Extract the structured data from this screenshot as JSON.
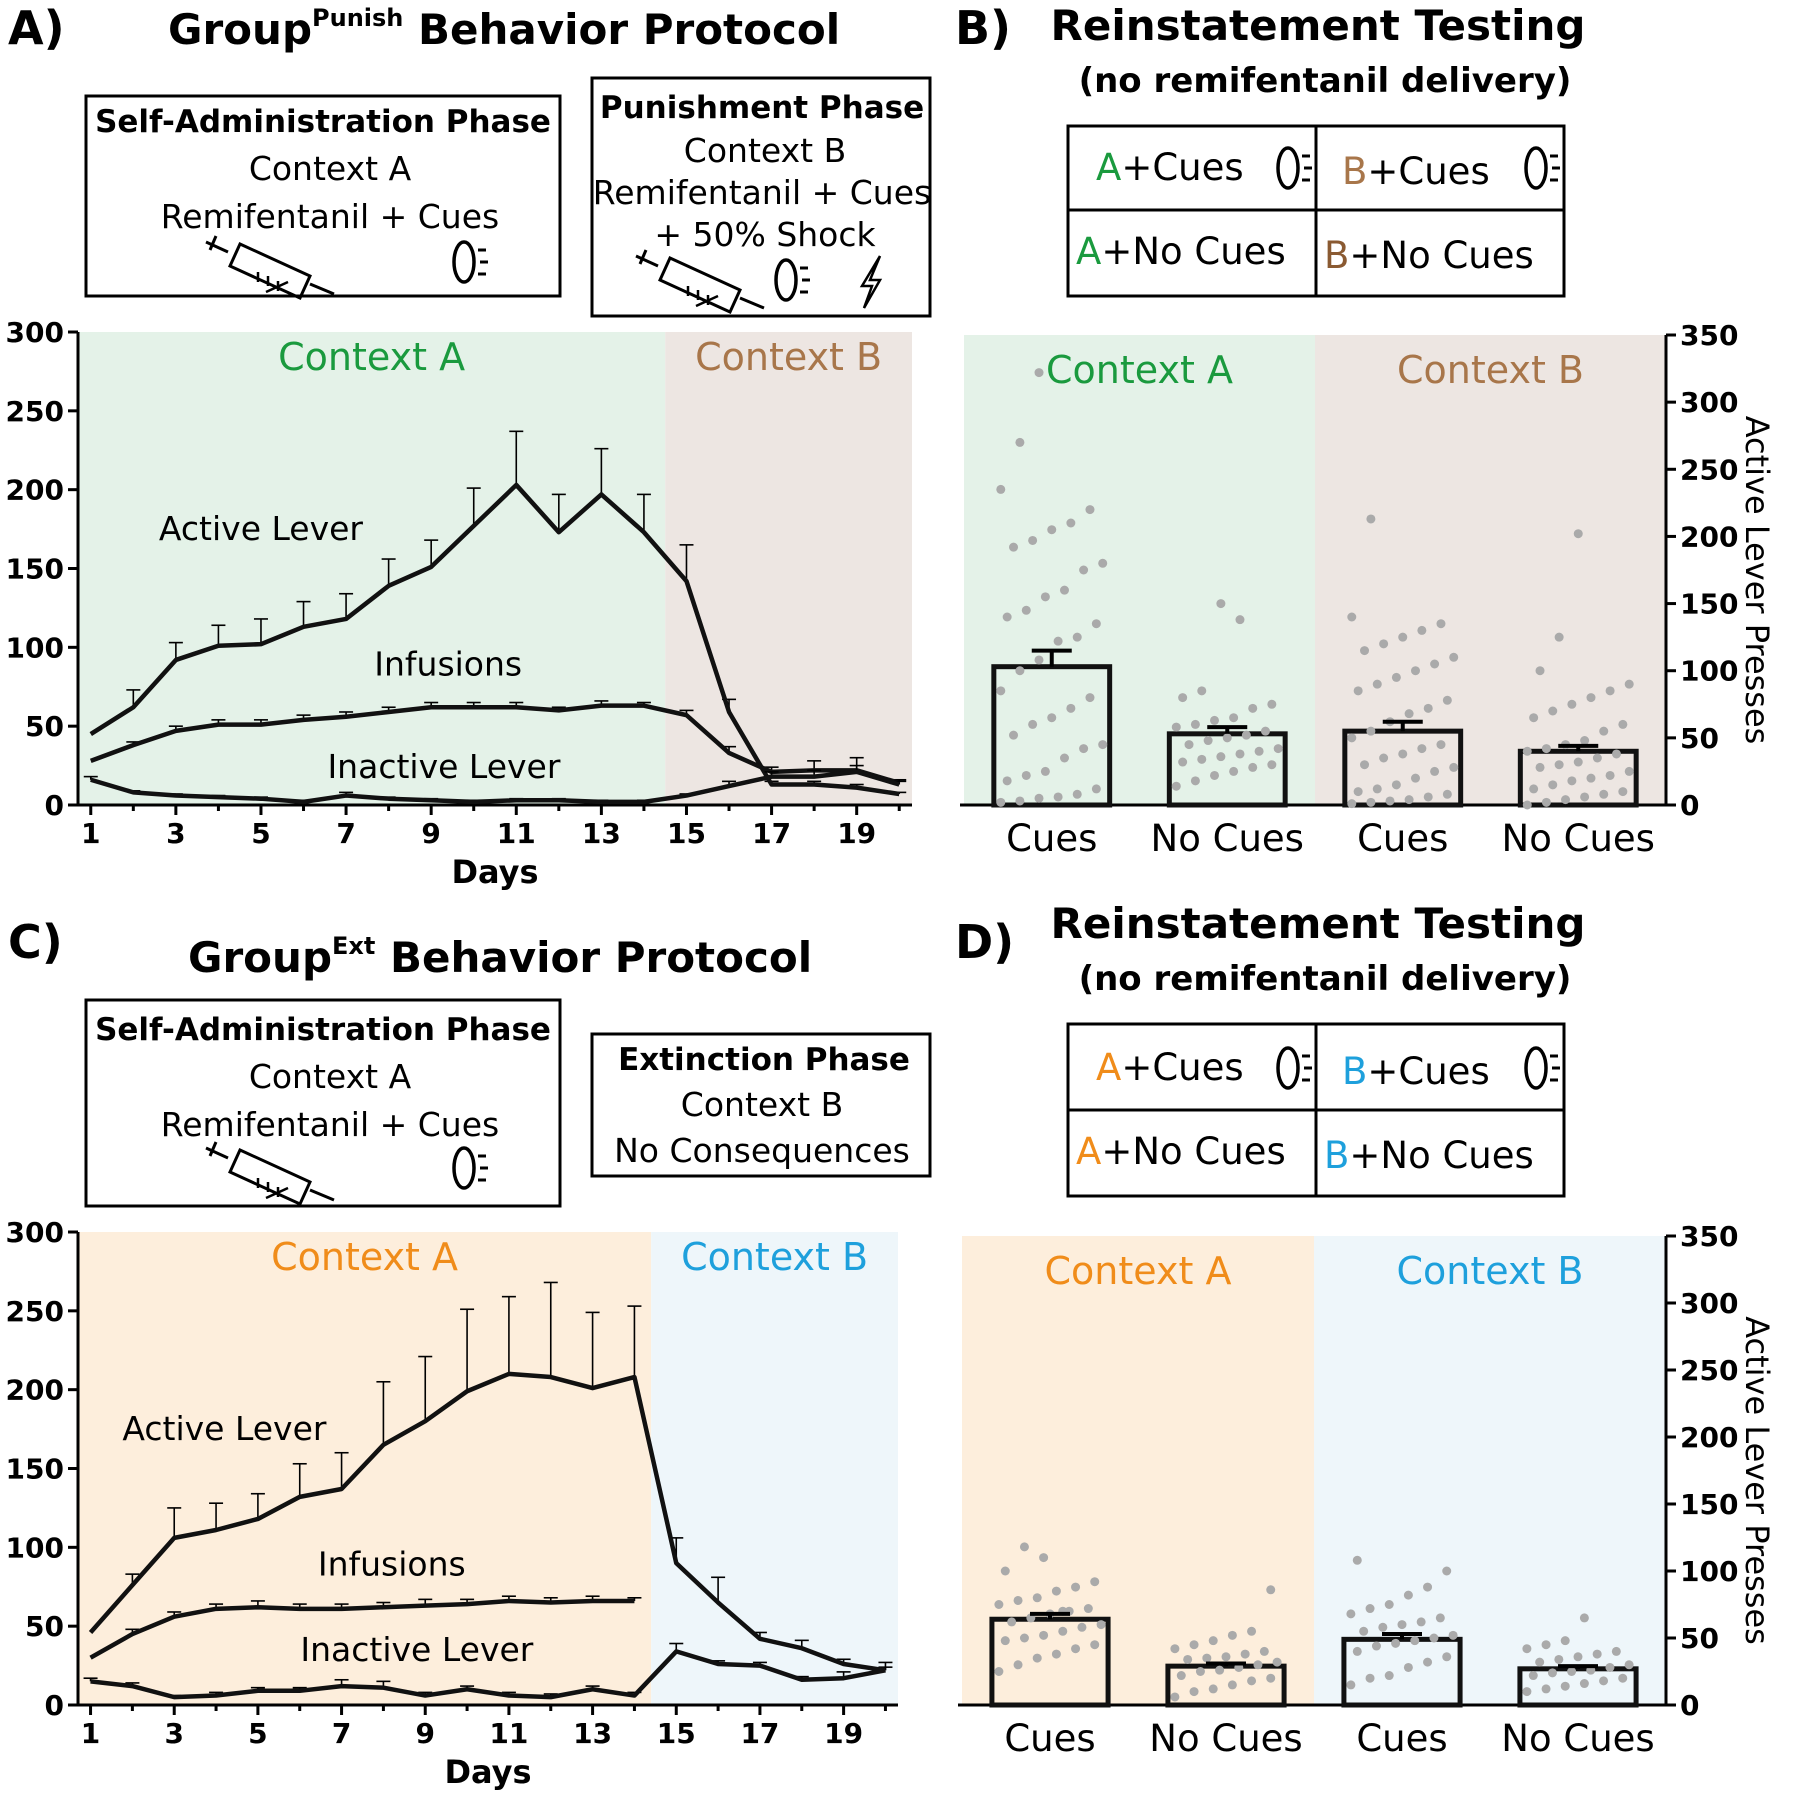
{
  "colors": {
    "green": "#1a9a3e",
    "brown": "#a8764a",
    "darkbrown": "#8a5a32",
    "orange": "#f08c1a",
    "blue": "#1ea0dc",
    "bg_green": "#e4f2e8",
    "bg_brown": "#ede6e2",
    "bg_orange": "#fdeedc",
    "bg_blue": "#eef6fa",
    "dot": "#aaaaaa"
  },
  "panelA": {
    "letter": "A)",
    "title_main": "Group",
    "title_sup": "Punish",
    "title_rest": " Behavior Protocol",
    "box1": {
      "head": "Self-Administration Phase",
      "context": "Context A",
      "text": "Remifentanil + Cues"
    },
    "box2": {
      "head": "Punishment Phase",
      "context": "Context B",
      "text1": "Remifentanil + Cues",
      "text2": "+ 50% Shock"
    }
  },
  "panelB": {
    "letter": "B)",
    "title": "Reinstatement Testing",
    "subtitle": "(no remifentanil delivery)",
    "legend": {
      "a_cues_letter": "A",
      "a_cues_text": "+Cues",
      "b_cues_letter": "B",
      "b_cues_text": "+Cues",
      "a_nocues_letter": "A",
      "a_nocues_text": "+No Cues",
      "b_nocues_letter": "B",
      "b_nocues_text": "+No Cues"
    }
  },
  "panelC": {
    "letter": "C)",
    "title_main": "Group",
    "title_sup": "Ext",
    "title_rest": " Behavior Protocol",
    "box1": {
      "head": "Self-Administration Phase",
      "context": "Context A",
      "text": "Remifentanil + Cues"
    },
    "box2": {
      "head": "Extinction Phase",
      "context": "Context B",
      "text": "No Consequences"
    }
  },
  "panelD": {
    "letter": "D)",
    "title": "Reinstatement Testing",
    "subtitle": "(no remifentanil delivery)",
    "legend": {
      "a_cues_letter": "A",
      "a_cues_text": "+Cues",
      "b_cues_letter": "B",
      "b_cues_text": "+Cues",
      "a_nocues_letter": "A",
      "a_nocues_text": "+No Cues",
      "b_nocues_letter": "B",
      "b_nocues_text": "+No Cues"
    }
  },
  "chart_data": [
    {
      "id": "A",
      "type": "line",
      "xlabel": "Days",
      "ylabel": "",
      "ylim": [
        0,
        300
      ],
      "xlim": [
        0.7,
        20.3
      ],
      "yticks": [
        0,
        50,
        100,
        150,
        200,
        250,
        300
      ],
      "xticks": [
        1,
        3,
        5,
        7,
        9,
        11,
        13,
        15,
        17,
        19
      ],
      "context_split": 14.5,
      "context_labels": [
        "Context A",
        "Context B"
      ],
      "series": [
        {
          "name": "Active Lever",
          "label_at": [
            5,
            168
          ],
          "x": [
            1,
            2,
            3,
            4,
            5,
            6,
            7,
            8,
            9,
            10,
            11,
            12,
            13,
            14,
            15,
            16,
            17,
            18,
            19,
            20
          ],
          "values": [
            45,
            62,
            92,
            101,
            102,
            113,
            118,
            139,
            151,
            177,
            203,
            173,
            197,
            173,
            142,
            59,
            13,
            13,
            11,
            7
          ],
          "err": [
            0,
            11,
            11,
            13,
            16,
            16,
            16,
            17,
            17,
            24,
            34,
            24,
            29,
            24,
            23,
            8,
            2,
            2,
            2,
            1
          ]
        },
        {
          "name": "Infusions",
          "label_at": [
            9.4,
            82
          ],
          "x": [
            1,
            2,
            3,
            4,
            5,
            6,
            7,
            8,
            9,
            10,
            11,
            12,
            13,
            14,
            15,
            16,
            17,
            18,
            19,
            20
          ],
          "values": [
            28,
            38,
            47,
            51,
            51,
            54,
            56,
            59,
            62,
            62,
            62,
            60,
            63,
            63,
            57,
            33,
            21,
            22,
            22,
            14
          ],
          "err": [
            0,
            2,
            3,
            3,
            3,
            3,
            3,
            3,
            3,
            3,
            3,
            2,
            3,
            2,
            3,
            4,
            3,
            6,
            8,
            2
          ]
        },
        {
          "name": "Inactive Lever",
          "label_at": [
            9.3,
            17
          ],
          "x": [
            1,
            2,
            3,
            4,
            5,
            6,
            7,
            8,
            9,
            10,
            11,
            12,
            13,
            14,
            15,
            16,
            17,
            18,
            19,
            20
          ],
          "values": [
            16,
            8,
            6,
            5,
            4,
            2,
            6,
            4,
            3,
            2,
            3,
            3,
            2,
            2,
            6,
            12,
            18,
            18,
            21,
            13
          ],
          "err": [
            2,
            1,
            1,
            1,
            1,
            1,
            2,
            1,
            1,
            1,
            1,
            1,
            1,
            1,
            1,
            3,
            3,
            4,
            4,
            2
          ]
        }
      ]
    },
    {
      "id": "B",
      "type": "bar",
      "ylabel": "Active Lever Presses",
      "ylim": [
        0,
        350
      ],
      "yticks": [
        0,
        50,
        100,
        150,
        200,
        250,
        300,
        350
      ],
      "categories": [
        "Cues",
        "No Cues",
        "Cues",
        "No Cues"
      ],
      "context_labels": [
        "Context A",
        "Context B"
      ],
      "values": [
        103,
        53,
        55,
        40
      ],
      "err": [
        12,
        5,
        7,
        4
      ],
      "points": [
        [
          2,
          3,
          5,
          6,
          8,
          12,
          18,
          22,
          25,
          35,
          42,
          45,
          52,
          60,
          65,
          72,
          80,
          85,
          100,
          108,
          122,
          125,
          135,
          140,
          145,
          155,
          160,
          175,
          180,
          192,
          197,
          205,
          210,
          220,
          235,
          270,
          322
        ],
        [
          14,
          18,
          22,
          25,
          28,
          30,
          32,
          34,
          36,
          38,
          40,
          42,
          45,
          48,
          50,
          52,
          55,
          58,
          60,
          63,
          65,
          72,
          75,
          80,
          85,
          150,
          138
        ],
        [
          1,
          2,
          3,
          4,
          6,
          8,
          10,
          12,
          15,
          20,
          25,
          28,
          30,
          35,
          38,
          42,
          45,
          50,
          55,
          62,
          68,
          72,
          78,
          85,
          90,
          95,
          100,
          105,
          110,
          115,
          120,
          125,
          130,
          135,
          140,
          213
        ],
        [
          0,
          2,
          4,
          6,
          8,
          10,
          12,
          15,
          18,
          20,
          22,
          25,
          28,
          30,
          32,
          35,
          38,
          40,
          42,
          45,
          48,
          55,
          60,
          65,
          70,
          75,
          80,
          85,
          90,
          100,
          125,
          202
        ]
      ]
    },
    {
      "id": "C",
      "type": "line",
      "xlabel": "Days",
      "ylabel": "",
      "ylim": [
        0,
        300
      ],
      "xlim": [
        0.7,
        20.3
      ],
      "yticks": [
        0,
        50,
        100,
        150,
        200,
        250,
        300
      ],
      "xticks": [
        1,
        3,
        5,
        7,
        9,
        11,
        13,
        15,
        17,
        19
      ],
      "context_split": 14.4,
      "context_labels": [
        "Context A",
        "Context B"
      ],
      "series": [
        {
          "name": "Active Lever",
          "label_at": [
            4.2,
            168
          ],
          "x": [
            1,
            2,
            3,
            4,
            5,
            6,
            7,
            8,
            9,
            10,
            11,
            12,
            13,
            14,
            15,
            16,
            17,
            18,
            19,
            20
          ],
          "values": [
            46,
            76,
            106,
            111,
            118,
            132,
            137,
            165,
            180,
            199,
            210,
            208,
            201,
            208,
            90,
            65,
            42,
            36,
            26,
            22
          ],
          "err": [
            0,
            7,
            19,
            17,
            16,
            21,
            23,
            40,
            41,
            52,
            49,
            60,
            48,
            45,
            16,
            16,
            4,
            5,
            3,
            2
          ]
        },
        {
          "name": "Infusions",
          "label_at": [
            8.2,
            82
          ],
          "x": [
            1,
            2,
            3,
            4,
            5,
            6,
            7,
            8,
            9,
            10,
            11,
            12,
            13,
            14
          ],
          "values": [
            30,
            45,
            56,
            61,
            62,
            61,
            61,
            62,
            63,
            64,
            66,
            65,
            66,
            66
          ],
          "err": [
            0,
            3,
            3,
            3,
            4,
            3,
            3,
            3,
            4,
            3,
            3,
            3,
            3,
            2
          ]
        },
        {
          "name": "Inactive Lever",
          "label_at": [
            8.8,
            28
          ],
          "x": [
            1,
            2,
            3,
            4,
            5,
            6,
            7,
            8,
            9,
            10,
            11,
            12,
            13,
            14,
            15,
            16,
            17,
            18,
            19,
            20
          ],
          "values": [
            15,
            12,
            5,
            6,
            9,
            9,
            12,
            11,
            6,
            10,
            6,
            5,
            10,
            6,
            34,
            26,
            25,
            16,
            17,
            22
          ],
          "err": [
            2,
            2,
            1,
            2,
            2,
            2,
            4,
            4,
            2,
            2,
            2,
            2,
            2,
            2,
            5,
            2,
            2,
            2,
            4,
            5
          ]
        }
      ]
    },
    {
      "id": "D",
      "type": "bar",
      "ylabel": "Active Lever Presses",
      "ylim": [
        0,
        350
      ],
      "yticks": [
        0,
        50,
        100,
        150,
        200,
        250,
        300,
        350
      ],
      "categories": [
        "Cues",
        "No Cues",
        "Cues",
        "No Cues"
      ],
      "context_labels": [
        "Context A",
        "Context B"
      ],
      "values": [
        64,
        29,
        49,
        27
      ],
      "err": [
        4,
        2,
        4,
        2
      ],
      "points": [
        [
          25,
          30,
          35,
          38,
          42,
          45,
          48,
          50,
          52,
          55,
          58,
          60,
          62,
          65,
          68,
          70,
          72,
          75,
          78,
          80,
          85,
          88,
          92,
          100,
          118,
          110,
          70
        ],
        [
          6,
          10,
          12,
          15,
          18,
          20,
          22,
          25,
          26,
          28,
          30,
          32,
          34,
          35,
          36,
          38,
          40,
          42,
          45,
          48,
          52,
          55,
          86
        ],
        [
          15,
          20,
          22,
          28,
          32,
          36,
          40,
          44,
          46,
          48,
          50,
          52,
          55,
          58,
          60,
          62,
          65,
          68,
          72,
          75,
          82,
          88,
          100,
          108
        ],
        [
          10,
          12,
          14,
          16,
          18,
          20,
          22,
          24,
          25,
          26,
          28,
          30,
          32,
          34,
          36,
          38,
          40,
          42,
          45,
          48,
          65
        ]
      ]
    }
  ]
}
